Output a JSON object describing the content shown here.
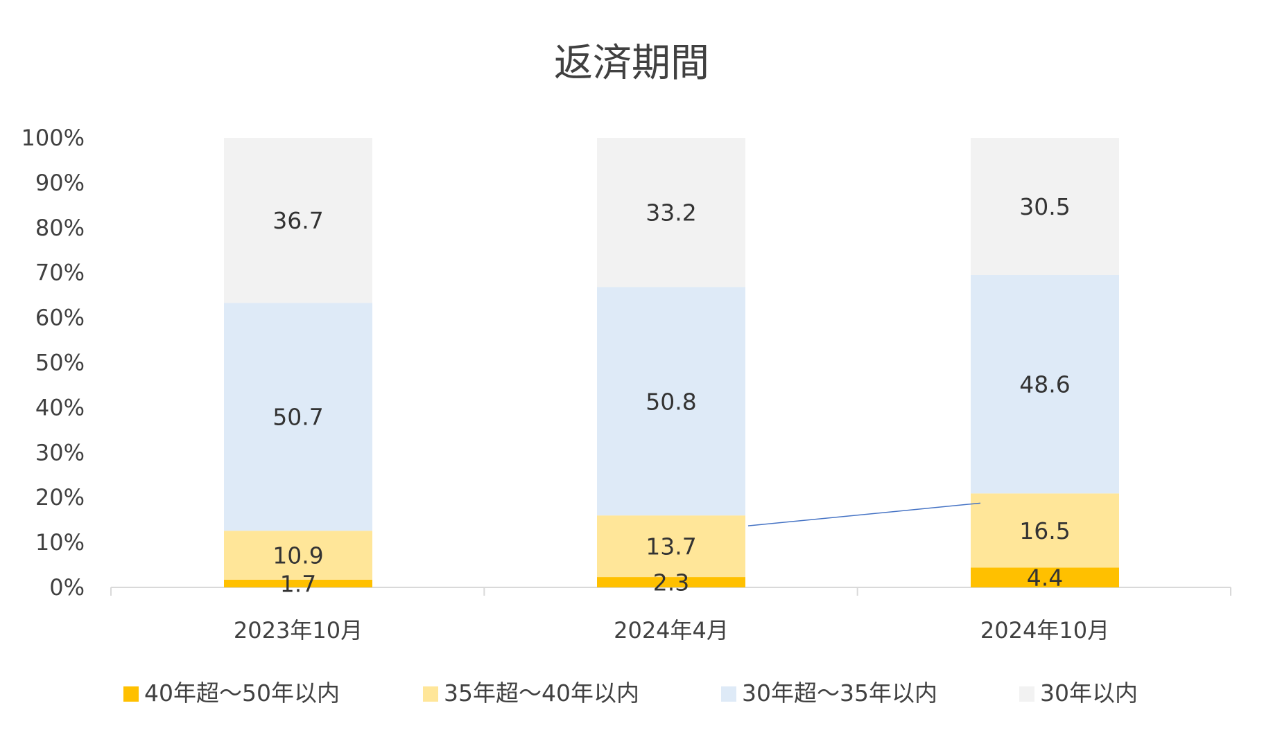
{
  "chart_data": {
    "type": "bar",
    "stacked": true,
    "title": "返済期間",
    "xlabel": "",
    "ylabel": "",
    "ylim": [
      0,
      100
    ],
    "y_ticks": [
      "0%",
      "10%",
      "20%",
      "30%",
      "40%",
      "50%",
      "60%",
      "70%",
      "80%",
      "90%",
      "100%"
    ],
    "categories": [
      "2023年10月",
      "2024年4月",
      "2024年10月"
    ],
    "series": [
      {
        "name": "40年超～50年以内",
        "values": [
          1.7,
          2.3,
          4.4
        ],
        "color": "#FFC000"
      },
      {
        "name": "35年超～40年以内",
        "values": [
          10.9,
          13.7,
          16.5
        ],
        "color": "#FFE699"
      },
      {
        "name": "30年超～35年以内",
        "values": [
          50.7,
          50.8,
          48.6
        ],
        "color": "#DEEAF7"
      },
      {
        "name": "30年以内",
        "values": [
          36.7,
          33.2,
          30.5
        ],
        "color": "#F2F2F2"
      }
    ],
    "grid": false,
    "legend_position": "bottom",
    "annotation_line_color": "#4472C4",
    "axis_color": "#D9D9D9",
    "text_color": "#404040"
  }
}
